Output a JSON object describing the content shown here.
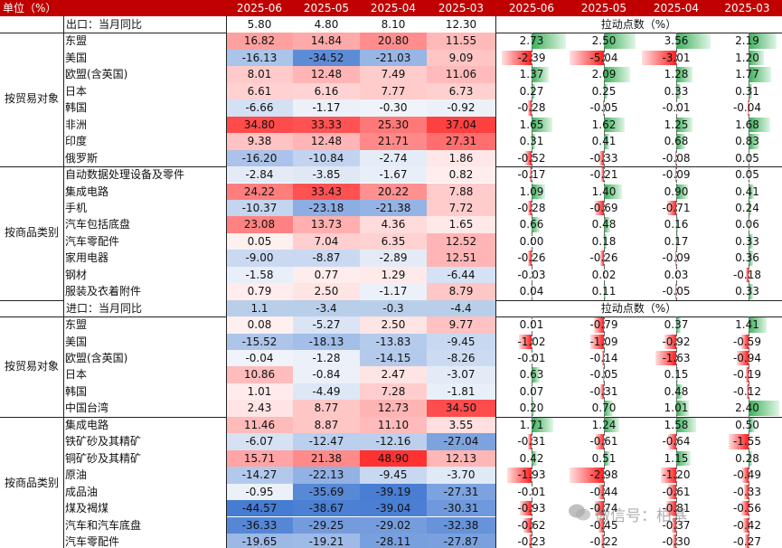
{
  "header": {
    "unit_label": "单位（%）",
    "months": [
      "2025-06",
      "2025-05",
      "2025-04",
      "2025-03",
      "2025-06",
      "2025-05",
      "2025-04",
      "2025-03"
    ]
  },
  "sections": [
    {
      "title": "出口：当月同比",
      "headline": [
        "5.80",
        "4.80",
        "8.10",
        "12.30"
      ],
      "contrib_title": "拉动点数（%）",
      "groups": [
        {
          "label": "按贸易对象",
          "rows": [
            {
              "name": "东盟",
              "v": [
                16.82,
                14.84,
                20.8,
                11.55
              ],
              "c": [
                2.73,
                2.5,
                3.56,
                2.19
              ]
            },
            {
              "name": "美国",
              "v": [
                -16.13,
                -34.52,
                -21.03,
                9.09
              ],
              "c": [
                -2.39,
                -5.04,
                -3.01,
                1.2
              ]
            },
            {
              "name": "欧盟(含英国)",
              "v": [
                8.01,
                12.48,
                7.49,
                11.06
              ],
              "c": [
                1.37,
                2.09,
                1.28,
                1.77
              ]
            },
            {
              "name": "日本",
              "v": [
                6.61,
                6.16,
                7.77,
                6.73
              ],
              "c": [
                0.27,
                0.25,
                0.33,
                0.31
              ]
            },
            {
              "name": "韩国",
              "v": [
                -6.66,
                -1.17,
                -0.3,
                -0.92
              ],
              "c": [
                -0.28,
                -0.05,
                -0.01,
                -0.04
              ]
            },
            {
              "name": "非洲",
              "v": [
                34.8,
                33.33,
                25.3,
                37.04
              ],
              "c": [
                1.65,
                1.62,
                1.25,
                1.68
              ]
            },
            {
              "name": "印度",
              "v": [
                9.38,
                12.48,
                21.71,
                27.31
              ],
              "c": [
                0.31,
                0.41,
                0.68,
                0.83
              ]
            },
            {
              "name": "俄罗斯",
              "v": [
                -16.2,
                -10.84,
                -2.74,
                1.86
              ],
              "c": [
                -0.52,
                -0.33,
                -0.08,
                0.05
              ]
            }
          ]
        },
        {
          "label": "按商品类别",
          "rows": [
            {
              "name": "自动数据处理设备及零件",
              "v": [
                -2.84,
                -3.85,
                -1.67,
                0.82
              ],
              "c": [
                -0.17,
                -0.21,
                -0.09,
                0.05
              ]
            },
            {
              "name": "集成电路",
              "v": [
                24.22,
                33.43,
                20.22,
                7.88
              ],
              "c": [
                1.09,
                1.4,
                0.9,
                0.41
              ]
            },
            {
              "name": "手机",
              "v": [
                -10.37,
                -23.18,
                -21.38,
                7.72
              ],
              "c": [
                -0.28,
                -0.69,
                -0.71,
                0.24
              ]
            },
            {
              "name": "汽车包括底盘",
              "v": [
                23.08,
                13.73,
                4.36,
                1.65
              ],
              "c": [
                0.66,
                0.48,
                0.16,
                0.06
              ]
            },
            {
              "name": "汽车零配件",
              "v": [
                0.05,
                7.04,
                6.35,
                12.52
              ],
              "c": [
                0.0,
                0.18,
                0.17,
                0.33
              ]
            },
            {
              "name": "家用电器",
              "v": [
                -9.0,
                -8.87,
                -2.89,
                12.51
              ],
              "c": [
                -0.26,
                -0.26,
                -0.09,
                0.36
              ]
            },
            {
              "name": "钢材",
              "v": [
                -1.58,
                0.77,
                1.29,
                -6.44
              ],
              "c": [
                -0.03,
                0.02,
                0.03,
                -0.18
              ]
            },
            {
              "name": "服装及衣着附件",
              "v": [
                0.79,
                2.5,
                -1.17,
                8.79
              ],
              "c": [
                0.04,
                0.11,
                -0.05,
                0.33
              ]
            }
          ]
        }
      ]
    },
    {
      "title": "进口：当月同比",
      "headline": [
        "1.1",
        "-3.4",
        "-0.3",
        "-4.4"
      ],
      "contrib_title": "拉动点数（%）",
      "groups": [
        {
          "label": "按贸易对象",
          "rows": [
            {
              "name": "东盟",
              "v": [
                0.08,
                -5.27,
                2.5,
                9.77
              ],
              "c": [
                0.01,
                -0.79,
                0.37,
                1.41
              ]
            },
            {
              "name": "美国",
              "v": [
                -15.52,
                -18.13,
                -13.83,
                -9.45
              ],
              "c": [
                -1.02,
                -1.09,
                -0.92,
                -0.59
              ]
            },
            {
              "name": "欧盟(含英国)",
              "v": [
                -0.04,
                -1.28,
                -14.15,
                -8.26
              ],
              "c": [
                -0.01,
                -0.14,
                -1.63,
                -0.94
              ]
            },
            {
              "name": "日本",
              "v": [
                10.86,
                -0.84,
                2.47,
                -3.07
              ],
              "c": [
                0.63,
                -0.05,
                0.15,
                -0.19
              ]
            },
            {
              "name": "韩国",
              "v": [
                1.01,
                -4.49,
                7.28,
                -1.81
              ],
              "c": [
                0.07,
                -0.31,
                0.48,
                -0.12
              ]
            },
            {
              "name": "中国台湾",
              "v": [
                2.43,
                8.77,
                12.73,
                34.5
              ],
              "c": [
                0.2,
                0.7,
                1.01,
                2.4
              ]
            }
          ]
        },
        {
          "label": "按商品类别",
          "rows": [
            {
              "name": "集成电路",
              "v": [
                11.46,
                8.87,
                11.1,
                3.55
              ],
              "c": [
                1.71,
                1.24,
                1.58,
                0.5
              ]
            },
            {
              "name": "铁矿砂及其精矿",
              "v": [
                -6.07,
                -12.47,
                -12.16,
                -27.04
              ],
              "c": [
                -0.31,
                -0.61,
                -0.64,
                -1.55
              ]
            },
            {
              "name": "铜矿砂及其精矿",
              "v": [
                15.71,
                21.38,
                48.9,
                12.13
              ],
              "c": [
                0.42,
                0.51,
                1.15,
                0.28
              ]
            },
            {
              "name": "原油",
              "v": [
                -14.27,
                -22.13,
                -9.45,
                -3.7
              ],
              "c": [
                -1.93,
                -2.98,
                -1.2,
                -0.49
              ]
            },
            {
              "name": "成品油",
              "v": [
                -0.95,
                -35.69,
                -39.19,
                -27.31
              ],
              "c": [
                -0.01,
                -0.44,
                -0.61,
                -0.33
              ]
            },
            {
              "name": "煤及褐煤",
              "v": [
                -44.57,
                -38.67,
                -39.04,
                -30.31
              ],
              "c": [
                -0.93,
                -0.74,
                -0.81,
                -0.56
              ]
            },
            {
              "name": "汽车和汽车底盘",
              "v": [
                -36.33,
                -29.25,
                -29.02,
                -32.38
              ],
              "c": [
                -0.62,
                -0.45,
                -0.37,
                -0.42
              ]
            },
            {
              "name": "汽车零配件",
              "v": [
                -19.65,
                -19.21,
                -28.11,
                -27.87
              ],
              "c": [
                -0.23,
                -0.22,
                -0.3,
                -0.27
              ]
            }
          ]
        }
      ]
    }
  ],
  "watermark": "微信号：柏基",
  "colors": {
    "header_bg": "#c00000",
    "positive_heat": "#ff4a4a",
    "negative_heat": "#4a7cd0",
    "positive_bar": "#3cb05a",
    "negative_bar": "#ff1e1e",
    "headline_bg": "#b9cfe9"
  }
}
